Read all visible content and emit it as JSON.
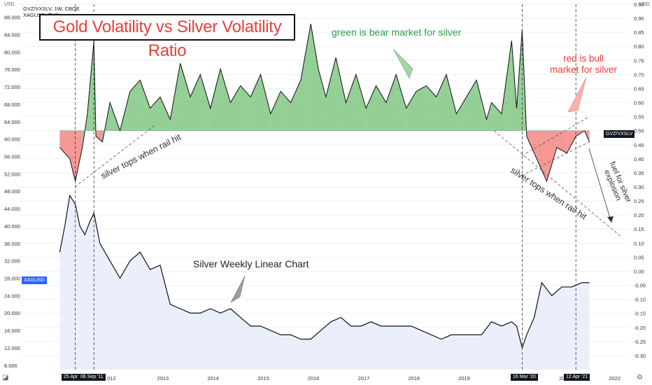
{
  "header": {
    "line1": "GVZ/VXSLV, 1W, CBOE",
    "line2": "XAGUSD, TVC"
  },
  "left_currency": "USD",
  "right_currency": "USD",
  "annotations": {
    "title": "Gold Volatility vs Silver Volatility Ratio",
    "green_note": "green is bear market for silver",
    "red_note_1": "red is bull",
    "red_note_2": "market for silver",
    "silver_chart": "Silver Weekly Linear Chart",
    "rail_left": "silver tops when rail hit",
    "rail_right": "silver tops when rail hit",
    "fuel_1": "fuel for silver",
    "fuel_2": "explosion"
  },
  "price_tags": {
    "xag": "XAGUSD",
    "gvz": "GVZ/VXSLV"
  },
  "date_markers": [
    "25 Apr '11",
    "06 Sep '11",
    "16 Mar '20",
    "12 Apr '21"
  ],
  "colors": {
    "bear_green": "#4caf50",
    "bull_red": "#ef5350",
    "silver_area": "#e3e8fb",
    "line": "#111111"
  },
  "chart_data": [
    {
      "type": "area",
      "name": "GVZ/VXSLV",
      "axis": "right",
      "ylim": [
        -0.35,
        0.95
      ],
      "baseline": 0.5,
      "yticks": [
        -0.3,
        -0.25,
        -0.2,
        -0.15,
        -0.1,
        -0.05,
        0.0,
        0.05,
        0.1,
        0.15,
        0.2,
        0.25,
        0.3,
        0.35,
        0.4,
        0.45,
        0.5,
        0.55,
        0.6,
        0.65,
        0.7,
        0.75,
        0.8,
        0.85,
        0.9,
        0.95
      ],
      "x": [
        2011.0,
        2011.2,
        2011.31,
        2011.45,
        2011.55,
        2011.68,
        2011.72,
        2011.85,
        2012.0,
        2012.2,
        2012.4,
        2012.6,
        2012.8,
        2013.0,
        2013.2,
        2013.4,
        2013.6,
        2013.8,
        2014.0,
        2014.2,
        2014.4,
        2014.6,
        2014.8,
        2015.0,
        2015.2,
        2015.4,
        2015.6,
        2015.8,
        2016.0,
        2016.15,
        2016.3,
        2016.5,
        2016.7,
        2016.9,
        2017.1,
        2017.3,
        2017.5,
        2017.7,
        2017.9,
        2018.1,
        2018.3,
        2018.5,
        2018.7,
        2018.9,
        2019.1,
        2019.3,
        2019.5,
        2019.6,
        2019.8,
        2020.0,
        2020.1,
        2020.21,
        2020.3,
        2020.5,
        2020.7,
        2020.9,
        2021.1,
        2021.28,
        2021.45,
        2021.55
      ],
      "values": [
        0.44,
        0.4,
        0.32,
        0.44,
        0.56,
        0.82,
        0.48,
        0.46,
        0.6,
        0.5,
        0.64,
        0.68,
        0.58,
        0.62,
        0.54,
        0.74,
        0.62,
        0.7,
        0.58,
        0.72,
        0.6,
        0.66,
        0.62,
        0.7,
        0.56,
        0.64,
        0.6,
        0.68,
        0.88,
        0.72,
        0.62,
        0.76,
        0.6,
        0.7,
        0.58,
        0.66,
        0.6,
        0.7,
        0.58,
        0.64,
        0.66,
        0.62,
        0.7,
        0.56,
        0.62,
        0.68,
        0.54,
        0.6,
        0.56,
        0.82,
        0.58,
        0.86,
        0.48,
        0.4,
        0.32,
        0.44,
        0.42,
        0.48,
        0.5,
        0.46
      ]
    },
    {
      "type": "line",
      "name": "XAGUSD",
      "axis": "left",
      "ylim": [
        7,
        91
      ],
      "yticks": [
        8,
        12,
        16,
        20,
        24,
        28,
        32,
        36,
        40,
        44,
        48,
        52,
        56,
        60,
        64,
        68,
        72,
        76,
        80,
        84,
        88
      ],
      "x": [
        2011.0,
        2011.1,
        2011.2,
        2011.31,
        2011.4,
        2011.5,
        2011.6,
        2011.68,
        2011.8,
        2012.0,
        2012.2,
        2012.4,
        2012.6,
        2012.8,
        2013.0,
        2013.2,
        2013.4,
        2013.6,
        2013.8,
        2014.0,
        2014.2,
        2014.4,
        2014.6,
        2014.8,
        2015.0,
        2015.2,
        2015.4,
        2015.6,
        2015.8,
        2016.0,
        2016.2,
        2016.4,
        2016.6,
        2016.8,
        2017.0,
        2017.2,
        2017.4,
        2017.6,
        2017.8,
        2018.0,
        2018.2,
        2018.4,
        2018.6,
        2018.8,
        2019.0,
        2019.2,
        2019.4,
        2019.6,
        2019.8,
        2020.0,
        2020.1,
        2020.21,
        2020.3,
        2020.45,
        2020.6,
        2020.8,
        2021.0,
        2021.2,
        2021.4,
        2021.55
      ],
      "values": [
        34,
        40,
        47,
        45,
        40,
        38,
        41,
        43,
        36,
        32,
        28,
        32,
        34,
        30,
        31,
        22,
        21,
        20,
        20,
        21,
        20,
        21,
        19,
        17,
        17,
        16,
        15,
        15,
        14,
        14,
        16,
        18,
        19,
        17,
        17,
        18,
        17,
        17,
        17,
        17,
        16,
        15,
        14,
        15,
        15,
        15,
        15,
        18,
        17,
        18,
        17,
        12,
        15,
        19,
        27,
        24,
        26,
        26,
        27,
        27
      ]
    }
  ],
  "x_axis": {
    "labels": [
      "2013",
      "2014",
      "2015",
      "2016",
      "2017",
      "2018",
      "2019",
      "2022"
    ],
    "partial": [
      "012",
      "202"
    ]
  }
}
